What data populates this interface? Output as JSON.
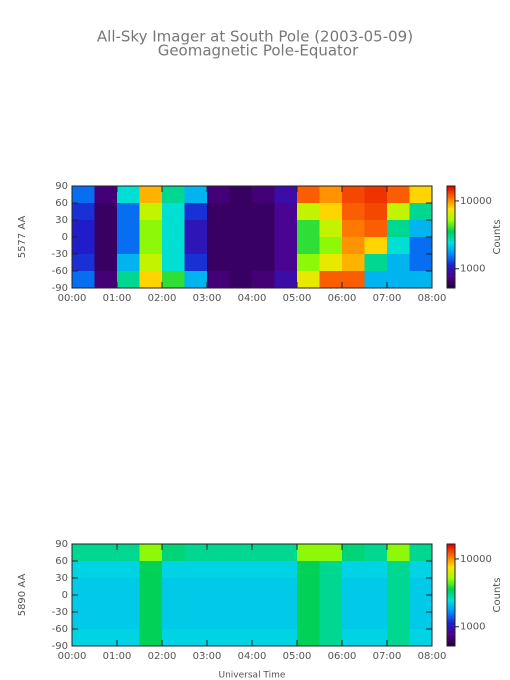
{
  "header": {
    "title": "All-Sky Imager at South Pole (2003-05-09)",
    "subtitle": "Geomagnetic Pole-Equator"
  },
  "chart_data": [
    {
      "type": "heatmap",
      "ylabel": "5577 AA",
      "colorbar_label": "Counts",
      "color_scale": "log",
      "colormap": [
        "#1a0030",
        "#50008a",
        "#1e1ecc",
        "#0088ff",
        "#00e0e0",
        "#00d050",
        "#a0ff00",
        "#ffe000",
        "#ff7000",
        "#e00000"
      ],
      "x": [
        0,
        0.5,
        1,
        1.5,
        2,
        2.5,
        3,
        3.5,
        4,
        4.5,
        5,
        5.5,
        6,
        6.5,
        7,
        7.5,
        8
      ],
      "y": [
        90,
        60,
        30,
        0,
        -30,
        -60,
        -90
      ],
      "values": [
        [
          1500,
          700,
          2500,
          9000,
          3000,
          2000,
          700,
          650,
          700,
          900,
          12000,
          10000,
          13000,
          14000,
          12000,
          8000
        ],
        [
          1200,
          650,
          1500,
          6000,
          2500,
          1200,
          650,
          650,
          650,
          800,
          6000,
          8000,
          12000,
          13000,
          6000,
          3000
        ],
        [
          1100,
          650,
          1500,
          5000,
          2500,
          1000,
          650,
          650,
          650,
          800,
          4000,
          6000,
          11000,
          12000,
          3000,
          2000
        ],
        [
          1100,
          650,
          1500,
          5000,
          2500,
          1000,
          650,
          650,
          650,
          800,
          4000,
          5000,
          10000,
          8000,
          2500,
          1500
        ],
        [
          1200,
          650,
          2000,
          6000,
          2500,
          1200,
          650,
          650,
          650,
          800,
          5000,
          7000,
          9000,
          3000,
          2000,
          1500
        ],
        [
          1500,
          700,
          3000,
          8000,
          4000,
          2000,
          700,
          650,
          700,
          900,
          7000,
          12000,
          12000,
          2000,
          2000,
          2000
        ]
      ],
      "xlim": [
        0,
        8
      ],
      "ylim": [
        -90,
        90
      ],
      "clim": [
        520,
        16600
      ],
      "xticks": [
        {
          "value": 0,
          "label": "00:00"
        },
        {
          "value": 1,
          "label": "01:00"
        },
        {
          "value": 2,
          "label": "02:00"
        },
        {
          "value": 3,
          "label": "03:00"
        },
        {
          "value": 4,
          "label": "04:00"
        },
        {
          "value": 5,
          "label": "05:00"
        },
        {
          "value": 6,
          "label": "06:00"
        },
        {
          "value": 7,
          "label": "07:00"
        },
        {
          "value": 8,
          "label": "08:00"
        }
      ],
      "yticks": [
        90,
        60,
        30,
        0,
        -30,
        -60,
        -90
      ],
      "cticks": [
        10000,
        1000
      ]
    },
    {
      "type": "heatmap",
      "ylabel": "5890 AA",
      "colorbar_label": "Counts",
      "xlabel": "Universal Time",
      "color_scale": "log",
      "colormap": [
        "#1a0030",
        "#50008a",
        "#1e1ecc",
        "#0088ff",
        "#00e0e0",
        "#00d050",
        "#a0ff00",
        "#ffe000",
        "#ff7000",
        "#e00000"
      ],
      "x": [
        0,
        0.5,
        1,
        1.5,
        2,
        2.5,
        3,
        3.5,
        4,
        4.5,
        5,
        5.5,
        6,
        6.5,
        7,
        7.5,
        8
      ],
      "y": [
        90,
        60,
        30,
        0,
        -30,
        -60,
        -90
      ],
      "values": [
        [
          3000,
          3000,
          3000,
          5000,
          3200,
          3000,
          3000,
          3000,
          3000,
          3000,
          5000,
          5000,
          3200,
          3000,
          5000,
          3000
        ],
        [
          2300,
          2300,
          2300,
          3500,
          2300,
          2300,
          2300,
          2300,
          2300,
          2300,
          3500,
          3000,
          2300,
          2300,
          3000,
          2300
        ],
        [
          2200,
          2200,
          2200,
          3500,
          2200,
          2200,
          2200,
          2200,
          2200,
          2200,
          3500,
          3000,
          2200,
          2200,
          3000,
          2200
        ],
        [
          2200,
          2200,
          2200,
          3500,
          2200,
          2200,
          2200,
          2200,
          2200,
          2200,
          3500,
          3000,
          2200,
          2200,
          3000,
          2200
        ],
        [
          2200,
          2200,
          2200,
          3500,
          2200,
          2200,
          2200,
          2200,
          2200,
          2200,
          3500,
          3000,
          2200,
          2200,
          3000,
          2200
        ],
        [
          2300,
          2300,
          2300,
          3500,
          2300,
          2300,
          2300,
          2300,
          2300,
          2300,
          3500,
          3000,
          2300,
          2300,
          3000,
          2300
        ]
      ],
      "xlim": [
        0,
        8
      ],
      "ylim": [
        -90,
        90
      ],
      "clim": [
        520,
        16600
      ],
      "xticks": [
        {
          "value": 0,
          "label": "00:00"
        },
        {
          "value": 1,
          "label": "01:00"
        },
        {
          "value": 2,
          "label": "02:00"
        },
        {
          "value": 3,
          "label": "03:00"
        },
        {
          "value": 4,
          "label": "04:00"
        },
        {
          "value": 5,
          "label": "05:00"
        },
        {
          "value": 6,
          "label": "06:00"
        },
        {
          "value": 7,
          "label": "07:00"
        },
        {
          "value": 8,
          "label": "08:00"
        }
      ],
      "yticks": [
        90,
        60,
        30,
        0,
        -30,
        -60,
        -90
      ],
      "cticks": [
        10000,
        1000
      ]
    }
  ]
}
